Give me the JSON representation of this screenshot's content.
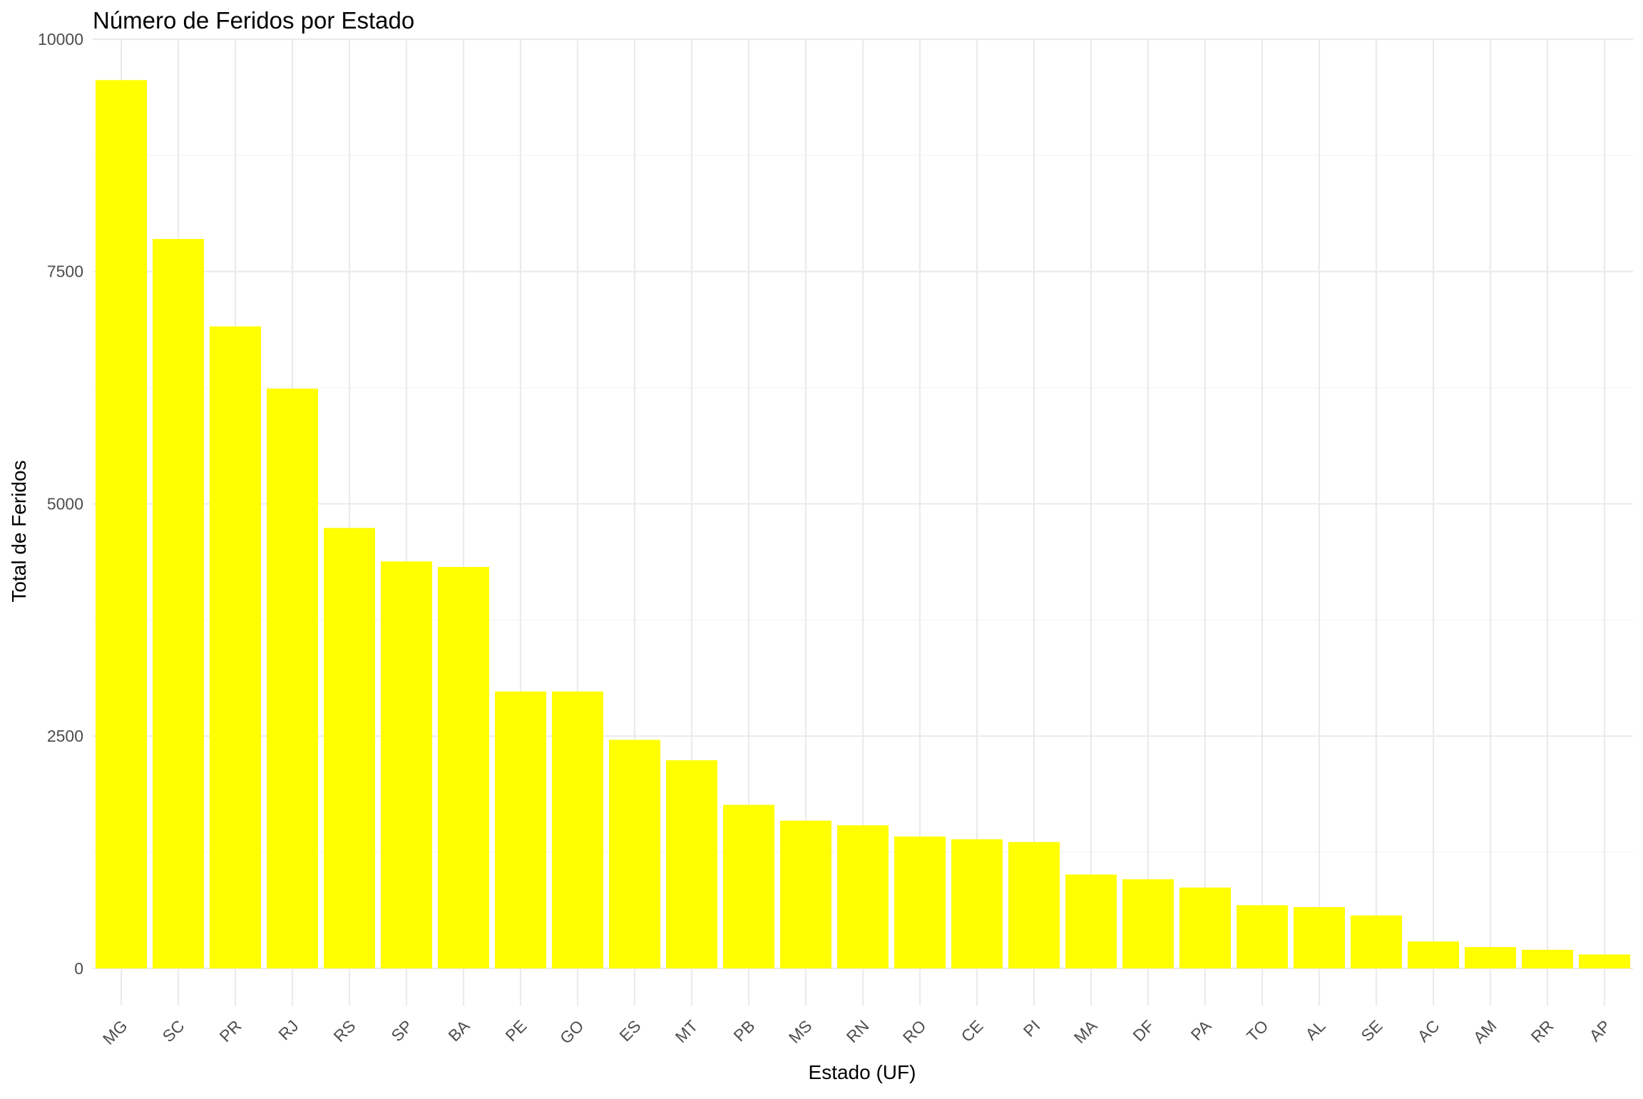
{
  "chart_data": {
    "type": "bar",
    "title": "Número de Feridos por Estado",
    "xlabel": "Estado (UF)",
    "ylabel": "Total de Feridos",
    "categories": [
      "MG",
      "SC",
      "PR",
      "RJ",
      "RS",
      "SP",
      "BA",
      "PE",
      "GO",
      "ES",
      "MT",
      "PB",
      "MS",
      "RN",
      "RO",
      "CE",
      "PI",
      "MA",
      "DF",
      "PA",
      "TO",
      "AL",
      "SE",
      "AC",
      "AM",
      "RR",
      "AP"
    ],
    "values": [
      9560,
      7850,
      6910,
      6240,
      4740,
      4380,
      4320,
      2980,
      2980,
      2460,
      2240,
      1760,
      1590,
      1540,
      1420,
      1390,
      1360,
      1010,
      960,
      870,
      680,
      660,
      570,
      290,
      230,
      200,
      150
    ],
    "ylim": [
      -400,
      10000
    ],
    "yticks": [
      0,
      2500,
      5000,
      7500,
      10000
    ],
    "ytick_labels": [
      "0",
      "2500",
      "5000",
      "7500",
      "10000"
    ],
    "bar_color": "#FFFF00",
    "grid": true,
    "legend": "none"
  }
}
